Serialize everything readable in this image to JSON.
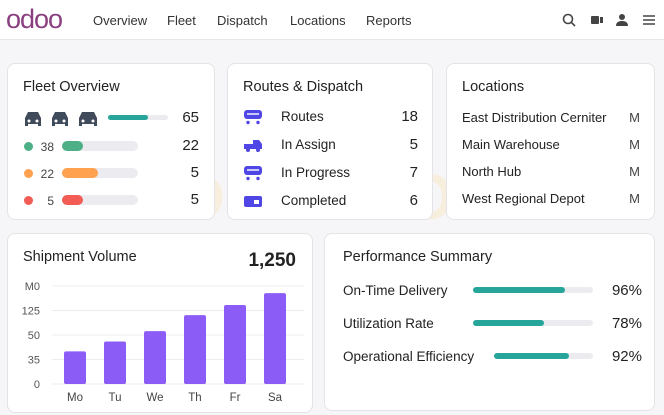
{
  "header": {
    "logo": "odoo",
    "nav": [
      "Overview",
      "Fleet",
      "Dispatch",
      "Locations",
      "Reports"
    ],
    "icons": [
      "search-icon",
      "video-icon",
      "user-icon",
      "menu-icon"
    ]
  },
  "watermark": "SDLC CORP",
  "fleet": {
    "title": "Fleet Overview",
    "total": {
      "value": "65",
      "fill": 0.67,
      "color": "#26a69a"
    },
    "rows": [
      {
        "dot": "#4caf85",
        "count": "38",
        "value": "22",
        "fill": 0.27
      },
      {
        "dot": "#ffa14e",
        "count": "22",
        "value": "5",
        "fill": 0.48
      },
      {
        "dot": "#f25c54",
        "count": "5",
        "value": "5",
        "fill": 0.28
      }
    ]
  },
  "routes": {
    "title": "Routes & Dispatch",
    "color": "#4f46e5",
    "items": [
      {
        "label": "Routes",
        "value": "18",
        "icon": "bus-icon"
      },
      {
        "label": "In Assign",
        "value": "5",
        "icon": "truck-icon"
      },
      {
        "label": "In Progress",
        "value": "7",
        "icon": "bus-icon"
      },
      {
        "label": "Completed",
        "value": "6",
        "icon": "van-icon"
      }
    ]
  },
  "locations": {
    "title": "Locations",
    "items": [
      {
        "name": "East Distribution Cerniter",
        "tag": "M"
      },
      {
        "name": "Main Warehouse",
        "tag": "M"
      },
      {
        "name": "North Hub",
        "tag": "M"
      },
      {
        "name": "West Regional Depot",
        "tag": "M"
      }
    ]
  },
  "shipment": {
    "title": "Shipment Volume",
    "total": "1,250"
  },
  "chart_data": {
    "type": "bar",
    "categories": [
      "Mo",
      "Tu",
      "We",
      "Th",
      "Fr",
      "Sa"
    ],
    "values": [
      40,
      46,
      62,
      111,
      142,
      178
    ],
    "yticks": [
      "0",
      "35",
      "50",
      "125",
      "M0"
    ],
    "ytick_values": [
      0,
      35,
      50,
      125,
      200
    ],
    "grid": true,
    "color": "#8b5cf6"
  },
  "performance": {
    "title": "Performance Summary",
    "color": "#26a69a",
    "items": [
      {
        "label": "On-Time Delivery",
        "value": "96%",
        "fill": 0.77
      },
      {
        "label": "Utilization Rate",
        "value": "78%",
        "fill": 0.59
      },
      {
        "label": "Operational Efficiency",
        "value": "92%",
        "fill": 0.76
      }
    ]
  }
}
